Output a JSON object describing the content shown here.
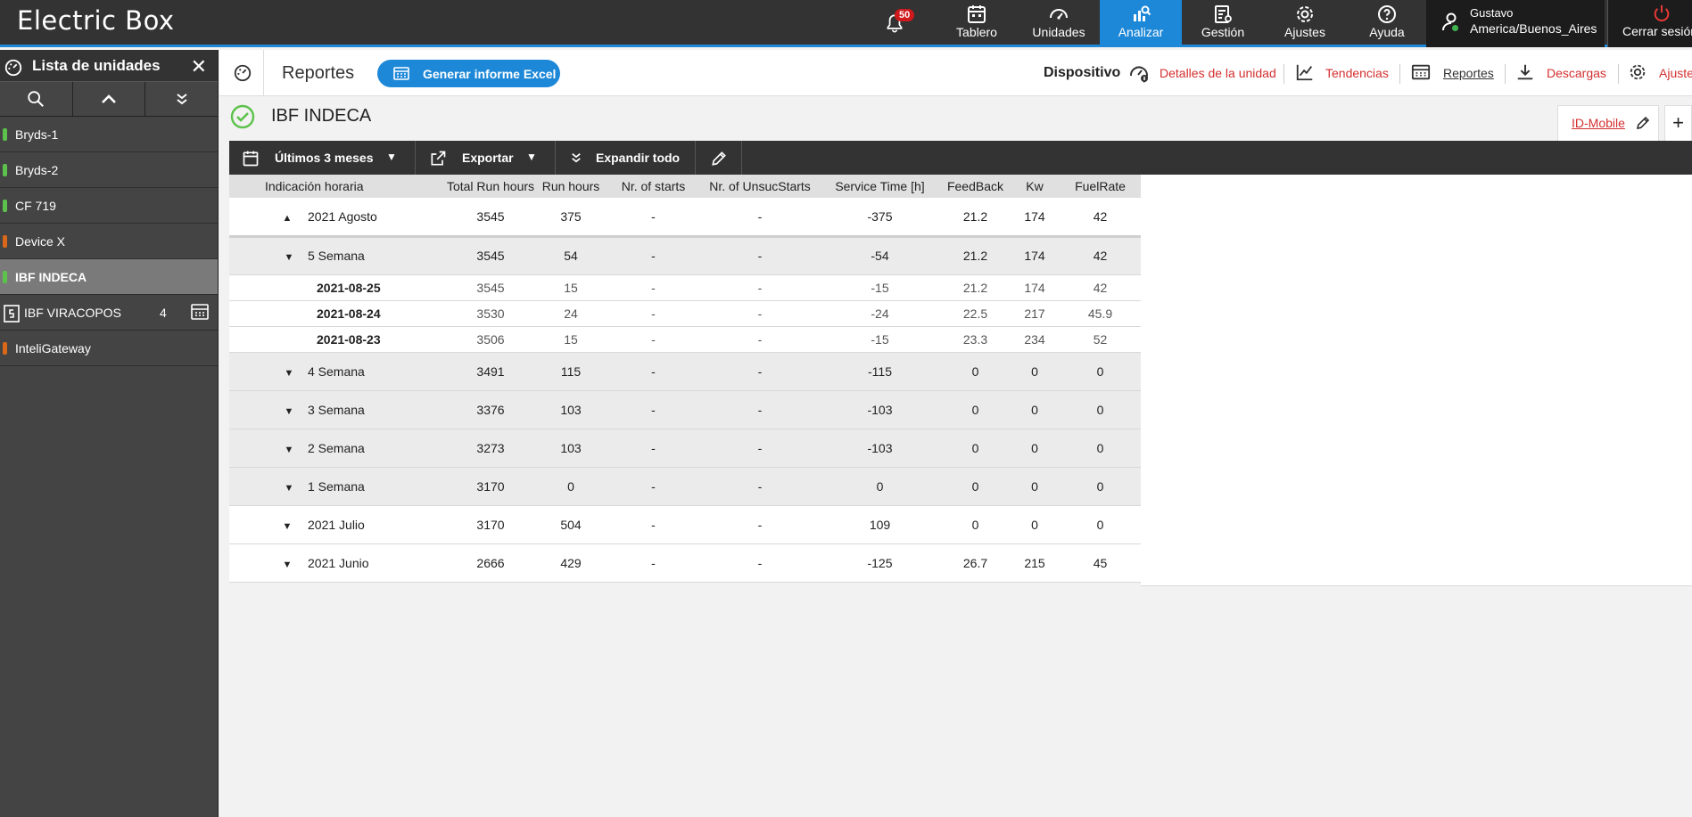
{
  "app": {
    "title": "Electric Box"
  },
  "notifications": {
    "count": "50"
  },
  "nav": [
    {
      "label": "Tablero",
      "icon": "calendar-icon"
    },
    {
      "label": "Unidades",
      "icon": "gauge-icon"
    },
    {
      "label": "Analizar",
      "icon": "analyze-icon",
      "active": true
    },
    {
      "label": "Gestión",
      "icon": "manage-icon"
    },
    {
      "label": "Ajustes",
      "icon": "gear-icon"
    },
    {
      "label": "Ayuda",
      "icon": "help-icon"
    }
  ],
  "user": {
    "name": "Gustavo",
    "timezone": "America/Buenos_Aires",
    "logout": "Cerrar sesión"
  },
  "sidebar": {
    "title": "Lista de unidades",
    "items": [
      {
        "label": "Bryds-1",
        "status_color": "#5cc24b"
      },
      {
        "label": "Bryds-2",
        "status_color": "#5cc24b"
      },
      {
        "label": "CF 719",
        "status_color": "#5cc24b"
      },
      {
        "label": "Device X",
        "status_color": "#d9681a"
      },
      {
        "label": "IBF INDECA",
        "status_color": "#5cc24b",
        "selected": true
      },
      {
        "label": "IBF VIRACOPOS",
        "count": "4"
      },
      {
        "label": "InteliGateway",
        "status_color": "#d9681a"
      }
    ]
  },
  "subbar": {
    "title": "Reportes",
    "excel_button": "Generar informe Excel",
    "device_label": "Dispositivo",
    "links": {
      "details": "Detalles de la unidad",
      "trends": "Tendencias",
      "reports": "Reportes",
      "downloads": "Descargas",
      "settings": "Ajustes"
    }
  },
  "unit": {
    "name": "IBF INDECA"
  },
  "tabs": {
    "active": "ID-Mobile",
    "add": "+"
  },
  "toolbar": {
    "period": "Últimos 3 meses",
    "export": "Exportar",
    "expand": "Expandir todo"
  },
  "table": {
    "headers": [
      "Indicación horaria",
      "Total Run hours",
      "Run hours",
      "Nr. of starts",
      "Nr. of UnsucStarts",
      "Service Time [h]",
      "FeedBack",
      "Kw",
      "FuelRate"
    ],
    "rows": [
      {
        "kind": "month",
        "expanded": true,
        "cells": [
          "2021 Agosto",
          "3545",
          "375",
          "-",
          "-",
          "-375",
          "21.2",
          "174",
          "42"
        ]
      },
      {
        "kind": "week",
        "cells": [
          "5 Semana",
          "3545",
          "54",
          "-",
          "-",
          "-54",
          "21.2",
          "174",
          "42"
        ]
      },
      {
        "kind": "day",
        "cells": [
          "2021-08-25",
          "3545",
          "15",
          "-",
          "-",
          "-15",
          "21.2",
          "174",
          "42"
        ]
      },
      {
        "kind": "day",
        "cells": [
          "2021-08-24",
          "3530",
          "24",
          "-",
          "-",
          "-24",
          "22.5",
          "217",
          "45.9"
        ]
      },
      {
        "kind": "day",
        "cells": [
          "2021-08-23",
          "3506",
          "15",
          "-",
          "-",
          "-15",
          "23.3",
          "234",
          "52"
        ]
      },
      {
        "kind": "week",
        "cells": [
          "4 Semana",
          "3491",
          "115",
          "-",
          "-",
          "-115",
          "0",
          "0",
          "0"
        ]
      },
      {
        "kind": "week",
        "cells": [
          "3 Semana",
          "3376",
          "103",
          "-",
          "-",
          "-103",
          "0",
          "0",
          "0"
        ]
      },
      {
        "kind": "week",
        "cells": [
          "2 Semana",
          "3273",
          "103",
          "-",
          "-",
          "-103",
          "0",
          "0",
          "0"
        ]
      },
      {
        "kind": "week",
        "cells": [
          "1 Semana",
          "3170",
          "0",
          "-",
          "-",
          "0",
          "0",
          "0",
          "0"
        ]
      },
      {
        "kind": "month",
        "cells": [
          "2021 Julio",
          "3170",
          "504",
          "-",
          "-",
          "109",
          "0",
          "0",
          "0"
        ]
      },
      {
        "kind": "month",
        "cells": [
          "2021 Junio",
          "2666",
          "429",
          "-",
          "-",
          "-125",
          "26.7",
          "215",
          "45"
        ]
      }
    ]
  },
  "colors": {
    "accent": "#1e88d8",
    "topbar": "#333333",
    "link_red": "#d32f2f",
    "ok_green": "#5cc24b"
  }
}
